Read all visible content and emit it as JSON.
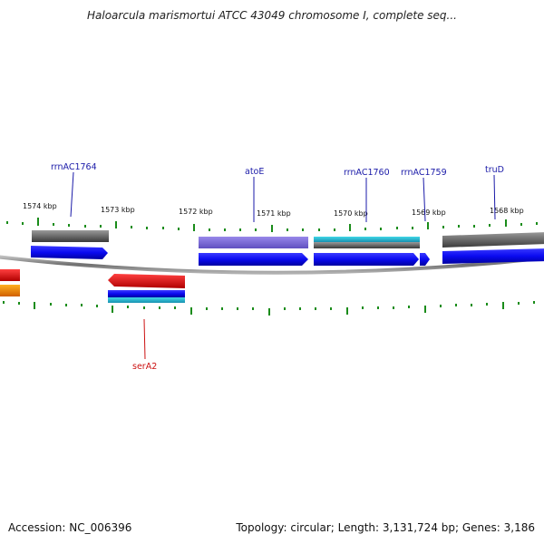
{
  "title": "Haloarcula marismortui ATCC 43049 chromosome I, complete seq...",
  "footer": {
    "accession": "Accession: NC_006396",
    "summary": "Topology: circular; Length: 3,131,724 bp; Genes: 3,186"
  },
  "ticks": [
    "1574 kbp",
    "1573 kbp",
    "1572 kbp",
    "1571 kbp",
    "1570 kbp",
    "1569 kbp",
    "1568 kbp"
  ],
  "gene_labels": {
    "rrnAC1764": "rrnAC1764",
    "atoE": "atoE",
    "rrnAC1760": "rrnAC1760",
    "rrnAC1759": "rrnAC1759",
    "truD": "truD",
    "serA2": "serA2"
  },
  "colors": {
    "label_blue": "#1a1aa8",
    "label_red": "#cc1111",
    "tick_green": "#1a8c1a",
    "cds_blue": "#0a0af0",
    "gray_feature": "#666666",
    "lavender_feature": "#7a6ad8",
    "teal_feature": "#20b0c8",
    "red_feature": "#e01010",
    "orange_feature": "#f08000"
  }
}
